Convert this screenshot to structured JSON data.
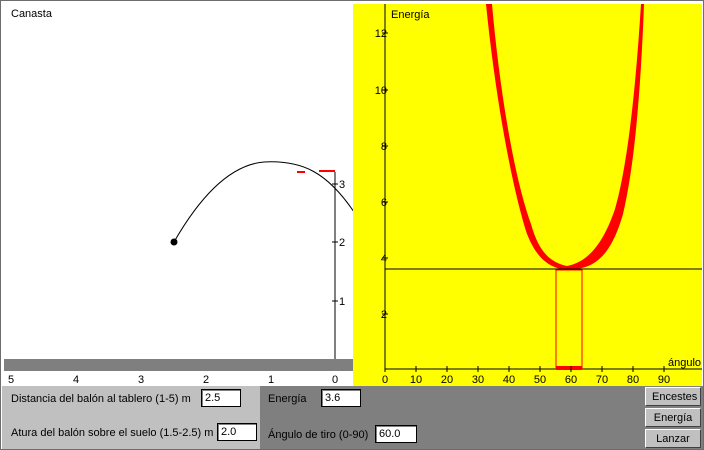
{
  "court": {
    "title": "Canasta",
    "height_ticks": [
      "1",
      "2",
      "3"
    ],
    "distance_ticks": [
      "5",
      "4",
      "3",
      "2",
      "1",
      "0"
    ]
  },
  "energy_plot": {
    "ylabel": "Energía",
    "xlabel": "ángulo",
    "y_ticks": [
      "2",
      "4",
      "6",
      "8",
      "10",
      "12"
    ],
    "x_ticks": [
      "0",
      "10",
      "20",
      "30",
      "40",
      "50",
      "60",
      "70",
      "80",
      "90"
    ]
  },
  "controls": {
    "distance_label": "Distancia del balón al tablero (1-5) m",
    "distance_value": "2.5",
    "height_label": "Atura del balón sobre el suelo (1.5-2.5) m",
    "height_value": "2.0",
    "energy_label": "Energía",
    "energy_value": "3.6",
    "angle_label": "Ángulo de tiro (0-90)",
    "angle_value": "60.0"
  },
  "buttons": {
    "encestes": "Encestes",
    "energia": "Energía",
    "lanzar": "Lanzar"
  },
  "colors": {
    "plot_background": "#ffff00",
    "curve": "#ff0000",
    "panel_gray": "#7f7f7f",
    "control_gray": "#c0c0c0"
  }
}
